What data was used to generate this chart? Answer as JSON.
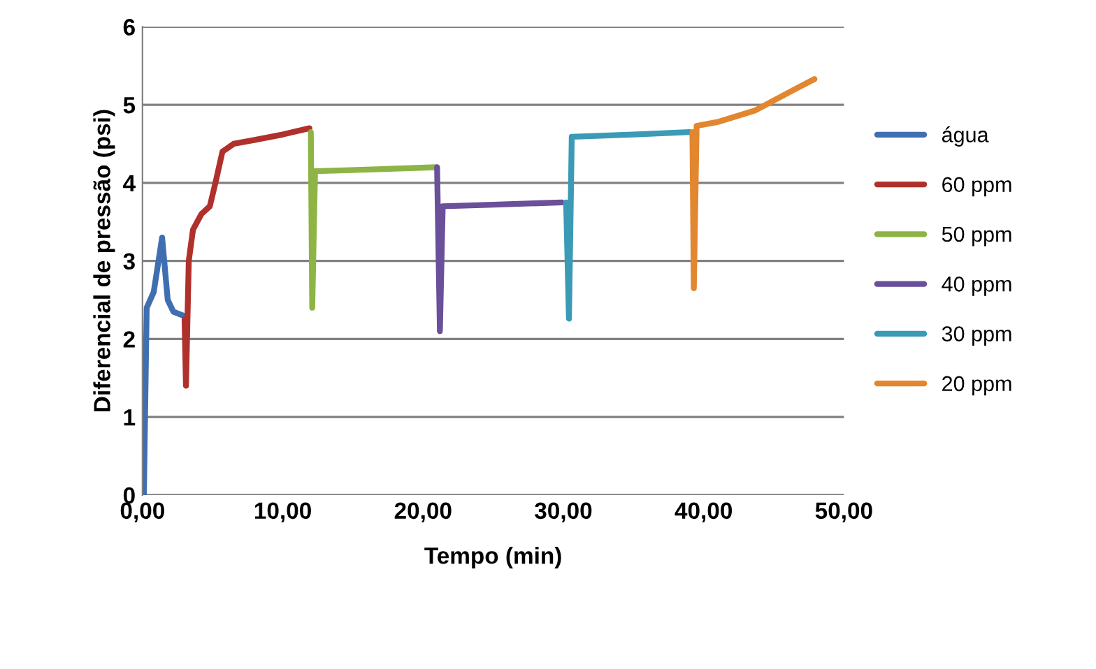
{
  "chart_data": {
    "type": "line",
    "xlabel": "Tempo (min)",
    "ylabel": "Diferencial de pressão (psi)",
    "xlim": [
      0,
      50
    ],
    "xticks": [
      {
        "value": 0,
        "label": "0,00"
      },
      {
        "value": 10,
        "label": "10,00"
      },
      {
        "value": 20,
        "label": "20,00"
      },
      {
        "value": 30,
        "label": "30,00"
      },
      {
        "value": 40,
        "label": "40,00"
      },
      {
        "value": 50,
        "label": "50,00"
      }
    ],
    "ylim": [
      0,
      6
    ],
    "yticks": [
      0,
      1,
      2,
      3,
      4,
      5,
      6
    ],
    "grid": "y",
    "legend": "right",
    "marker": "none",
    "line_style": "solid",
    "series": [
      {
        "name": "água",
        "color": "#3f6fb0",
        "x": [
          0.1,
          0.3,
          0.8,
          1.4,
          1.8,
          2.2,
          2.9
        ],
        "values": [
          0,
          2.4,
          2.6,
          3.3,
          2.5,
          2.35,
          2.3
        ]
      },
      {
        "name": "60 ppm",
        "color": "#b0312c",
        "x": [
          3.0,
          3.1,
          3.3,
          3.6,
          4.2,
          4.8,
          5.2,
          5.7,
          6.5,
          8,
          10,
          11.9
        ],
        "values": [
          2.25,
          1.4,
          3.0,
          3.4,
          3.6,
          3.7,
          4.0,
          4.4,
          4.5,
          4.55,
          4.62,
          4.7
        ]
      },
      {
        "name": "50 ppm",
        "color": "#8db444",
        "x": [
          12.0,
          12.1,
          12.3,
          16,
          20.9
        ],
        "values": [
          4.65,
          2.4,
          4.15,
          4.17,
          4.2
        ]
      },
      {
        "name": "40 ppm",
        "color": "#6a4f9a",
        "x": [
          21.0,
          21.2,
          21.4,
          25,
          29.9
        ],
        "values": [
          4.2,
          2.1,
          3.7,
          3.72,
          3.75
        ]
      },
      {
        "name": "30 ppm",
        "color": "#3b9ab5",
        "x": [
          30.2,
          30.4,
          30.6,
          35,
          39.0
        ],
        "values": [
          3.75,
          2.26,
          4.59,
          4.62,
          4.65
        ]
      },
      {
        "name": "20 ppm",
        "color": "#e2862f",
        "x": [
          39.2,
          39.3,
          39.5,
          41,
          43.7,
          46.4,
          47.9
        ],
        "values": [
          4.65,
          2.65,
          4.73,
          4.78,
          4.93,
          5.19,
          5.33
        ]
      }
    ]
  }
}
